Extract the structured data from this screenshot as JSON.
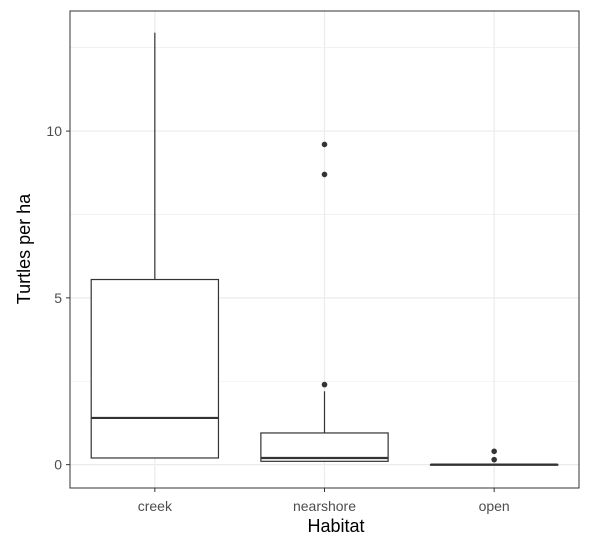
{
  "chart_data": {
    "type": "boxplot",
    "title": "",
    "xlabel": "Habitat",
    "ylabel": "Turtles per ha",
    "categories": [
      "creek",
      "nearshore",
      "open"
    ],
    "ylim": [
      -0.7,
      13.6
    ],
    "y_ticks": [
      0,
      5,
      10
    ],
    "y_tick_labels": [
      "0",
      "5",
      "10"
    ],
    "grid": true,
    "legend": "none",
    "boxes": [
      {
        "category": "creek",
        "whisker_low": 0.2,
        "q1": 0.2,
        "median": 1.4,
        "q3": 5.55,
        "whisker_high": 12.95,
        "outliers": []
      },
      {
        "category": "nearshore",
        "whisker_low": 0.1,
        "q1": 0.1,
        "median": 0.2,
        "q3": 0.95,
        "whisker_high": 2.2,
        "outliers": [
          2.4,
          8.7,
          9.6
        ]
      },
      {
        "category": "open",
        "whisker_low": 0.0,
        "q1": 0.0,
        "median": 0.0,
        "q3": 0.0,
        "whisker_high": 0.0,
        "outliers": [
          0.15,
          0.4
        ]
      }
    ],
    "colors": {
      "box_fill": "#ffffff",
      "box_line": "#333333",
      "grid": "#ebebeb",
      "panel_border": "#333333",
      "tick_label": "#4d4d4d"
    }
  }
}
